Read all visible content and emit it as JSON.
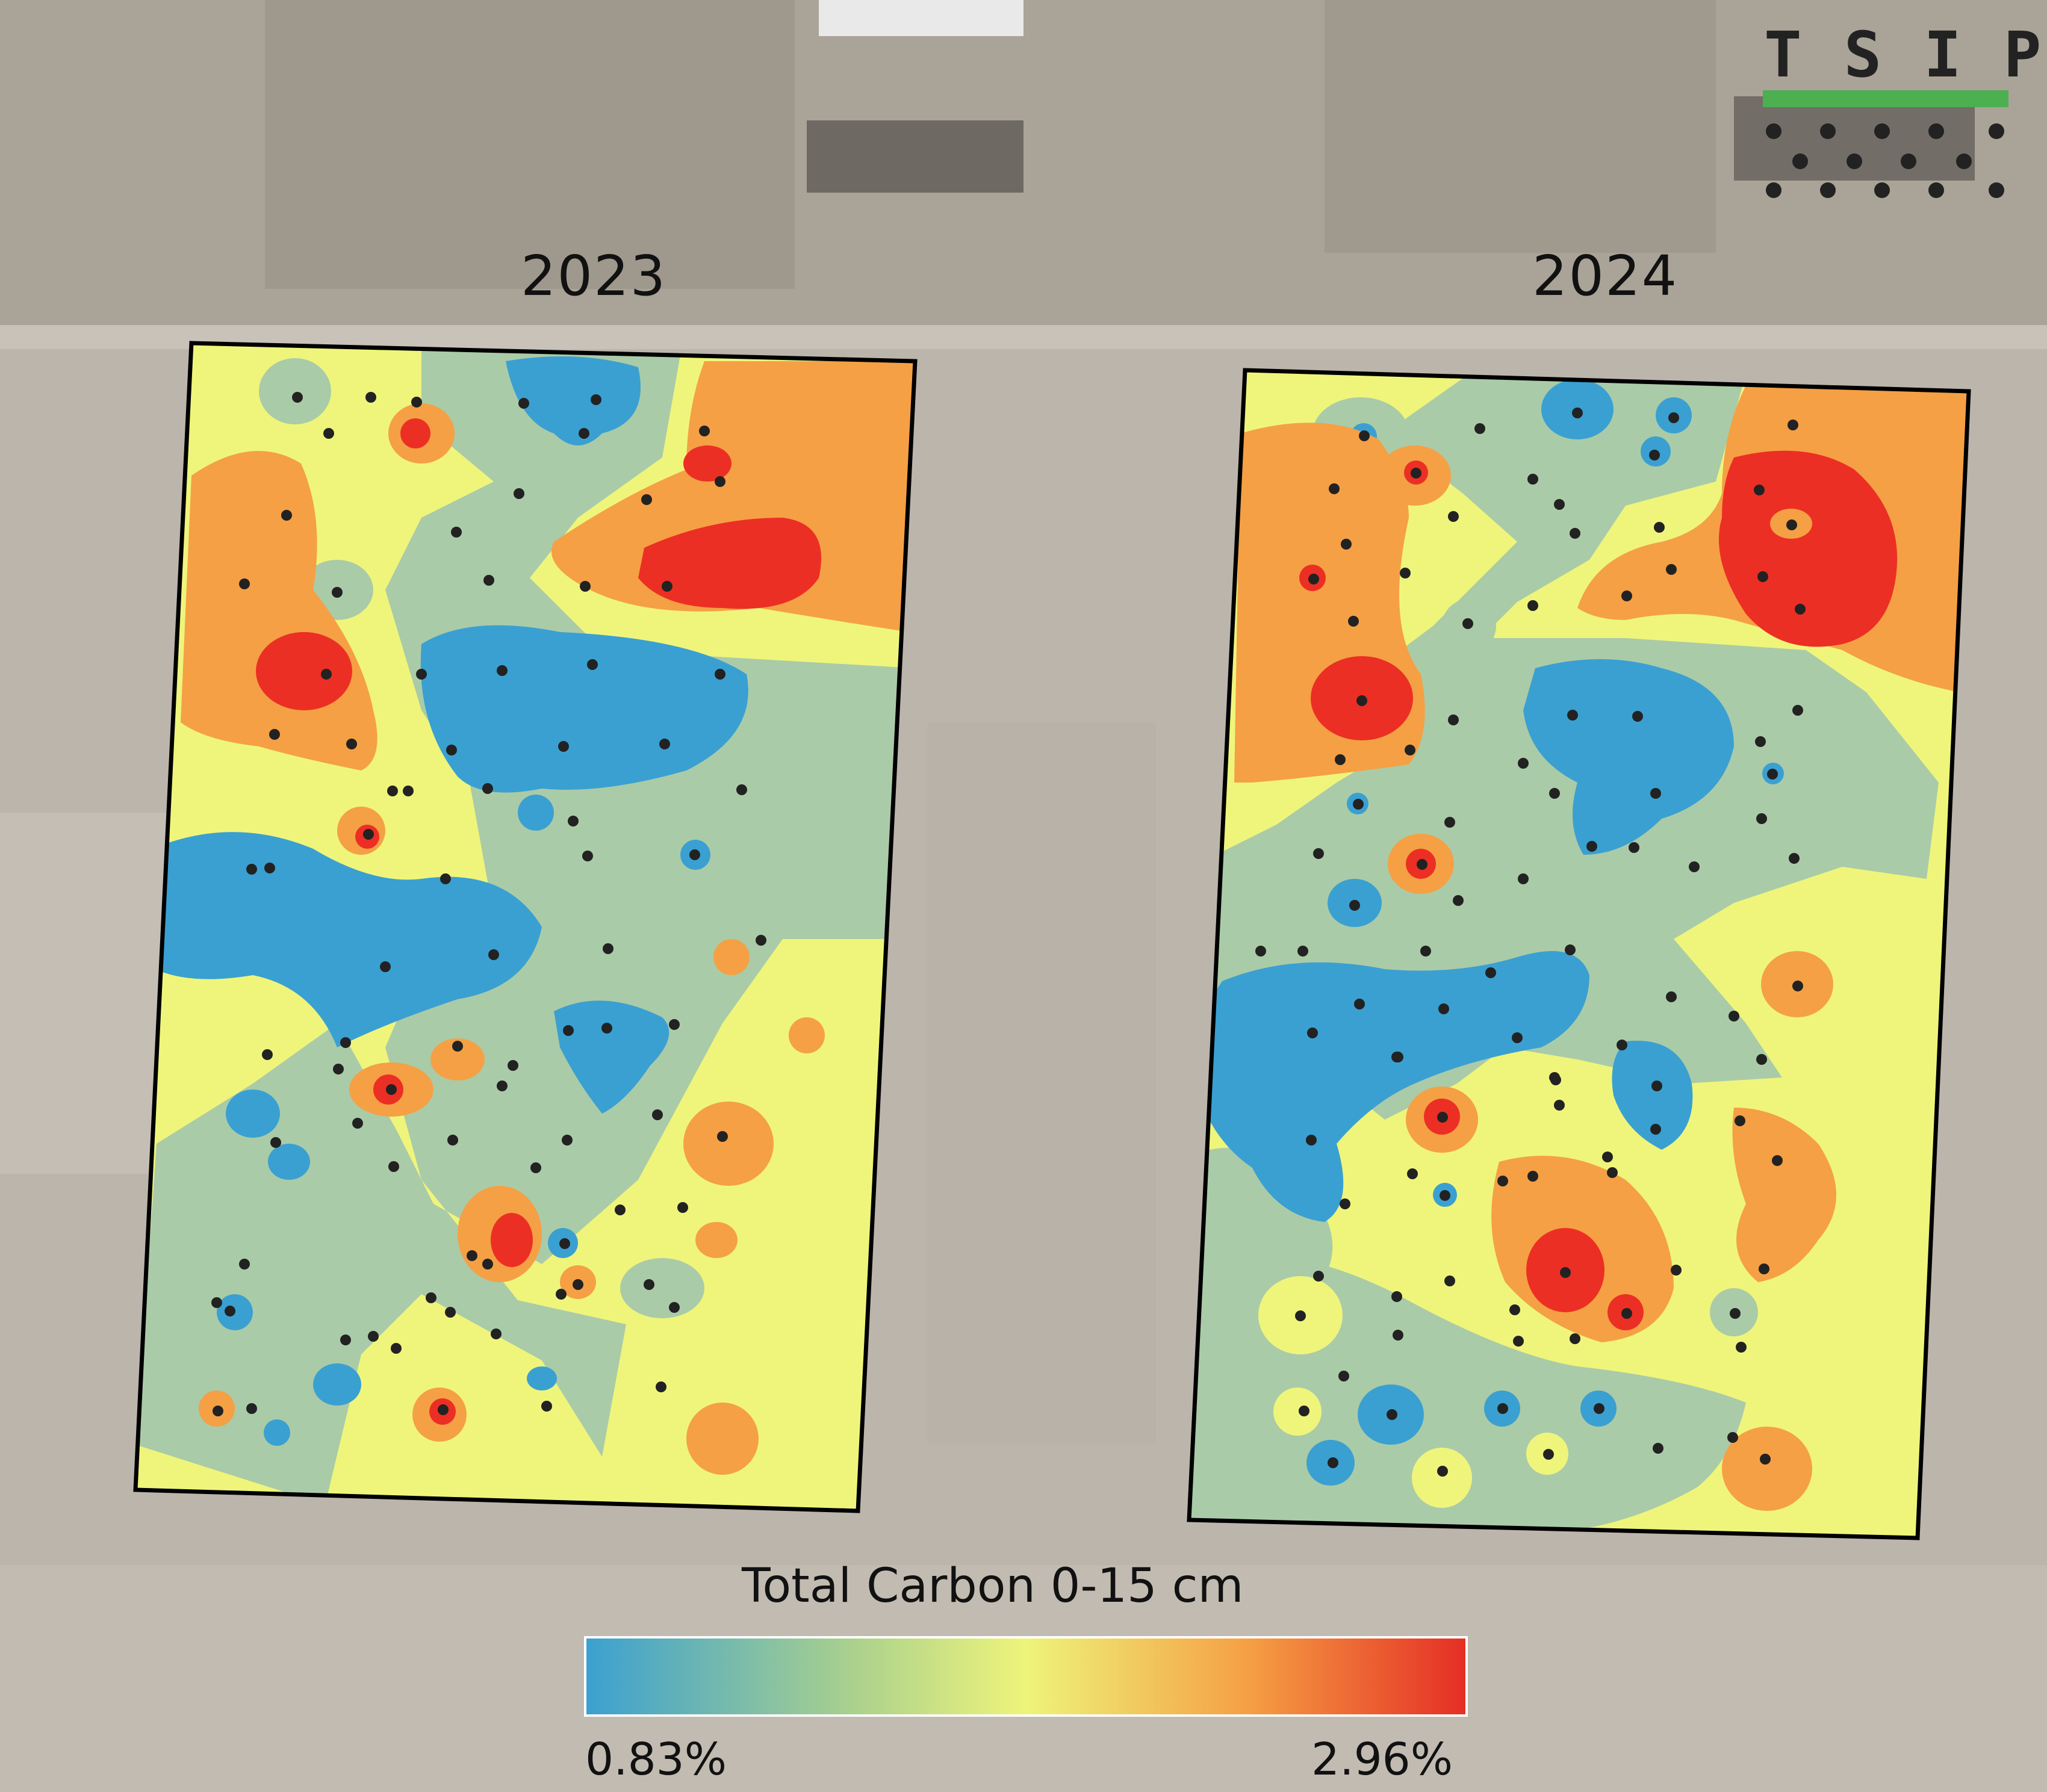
{
  "maps": [
    {
      "year_label": "2023"
    },
    {
      "year_label": "2024"
    }
  ],
  "legend": {
    "title": "Total Carbon 0-15 cm",
    "min_label": "0.83%",
    "max_label": "2.96%",
    "colors": [
      "#3aa0d1",
      "#a9d08e",
      "#eef47a",
      "#f5a044",
      "#e52d24"
    ]
  },
  "logo": {
    "text": "TSIP",
    "bar_color": "#4caf50"
  },
  "colors": {
    "low": "#3aa0d1",
    "low_mid": "#aacba8",
    "mid": "#eff57b",
    "high_mid": "#f5a044",
    "high": "#ec2f24",
    "sample_point": "#222222"
  }
}
